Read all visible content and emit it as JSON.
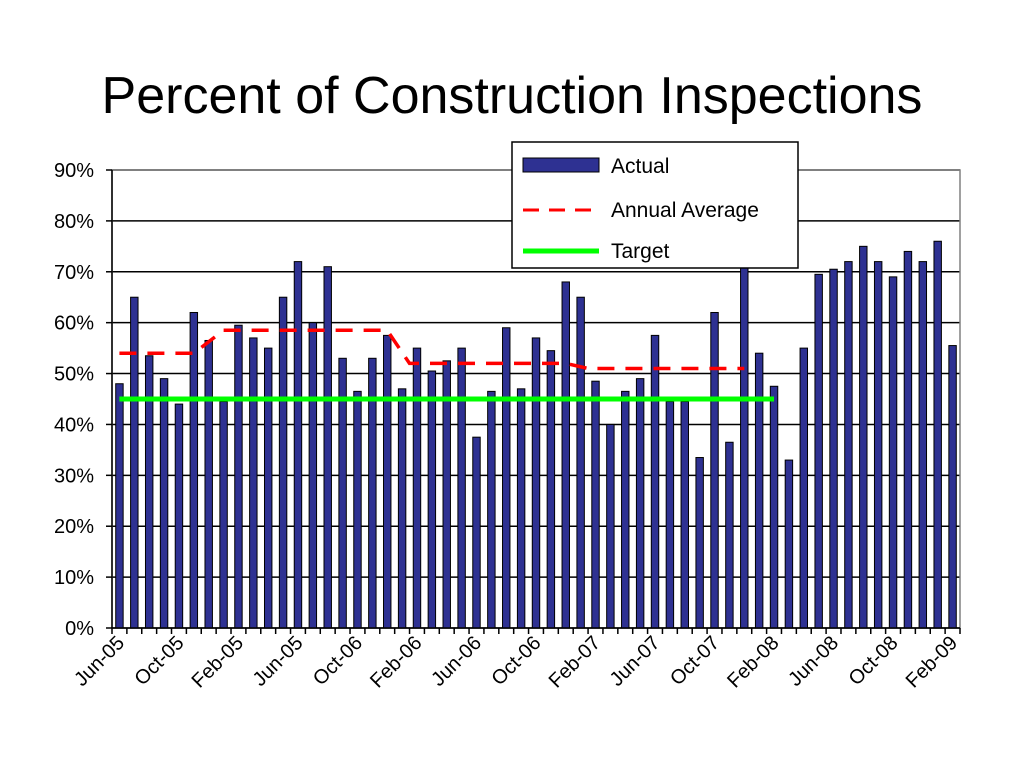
{
  "chart_data": {
    "type": "bar",
    "title": "Percent of Construction Inspections",
    "xlabel": "",
    "ylabel": "",
    "ylim": [
      0,
      90
    ],
    "y_ticks": [
      "0%",
      "10%",
      "20%",
      "30%",
      "40%",
      "50%",
      "60%",
      "70%",
      "80%",
      "90%"
    ],
    "x_tick_labels": [
      "Jun-05",
      "Oct-05",
      "Feb-05",
      "Jun-05",
      "Oct-06",
      "Feb-06",
      "Jun-06",
      "Oct-06",
      "Feb-07",
      "Jun-07",
      "Oct-07",
      "Feb-08",
      "Jun-08",
      "Oct-08",
      "Feb-09"
    ],
    "legend_position": "top-right",
    "grid": "horizontal",
    "colors": {
      "actual": "#2e3192",
      "annual_average": "#ff0000",
      "target": "#00ff00"
    },
    "series": [
      {
        "name": "Actual",
        "kind": "bar",
        "values": [
          48,
          65,
          53.5,
          49,
          44,
          62,
          56.5,
          44.5,
          59.5,
          57,
          55,
          65,
          72,
          60,
          71,
          53,
          46.5,
          53,
          57.5,
          47,
          55,
          50.5,
          52.5,
          55,
          37.5,
          46.5,
          59,
          47,
          57,
          54.5,
          68,
          65,
          48.5,
          40,
          46.5,
          49,
          57.5,
          44.5,
          44.5,
          33.5,
          62,
          36.5,
          71,
          54,
          47.5,
          33,
          55,
          69.5,
          70.5,
          72,
          75,
          72,
          69,
          74,
          72,
          76,
          55.5
        ]
      },
      {
        "name": "Annual Average",
        "kind": "line",
        "points": [
          [
            0,
            54
          ],
          [
            5,
            54
          ],
          [
            7,
            58.5
          ],
          [
            18,
            58.5
          ],
          [
            19.5,
            52
          ],
          [
            30,
            52
          ],
          [
            31.5,
            51
          ],
          [
            42,
            51
          ]
        ]
      },
      {
        "name": "Target",
        "kind": "line",
        "points": [
          [
            0,
            45
          ],
          [
            44,
            45
          ]
        ]
      }
    ]
  }
}
